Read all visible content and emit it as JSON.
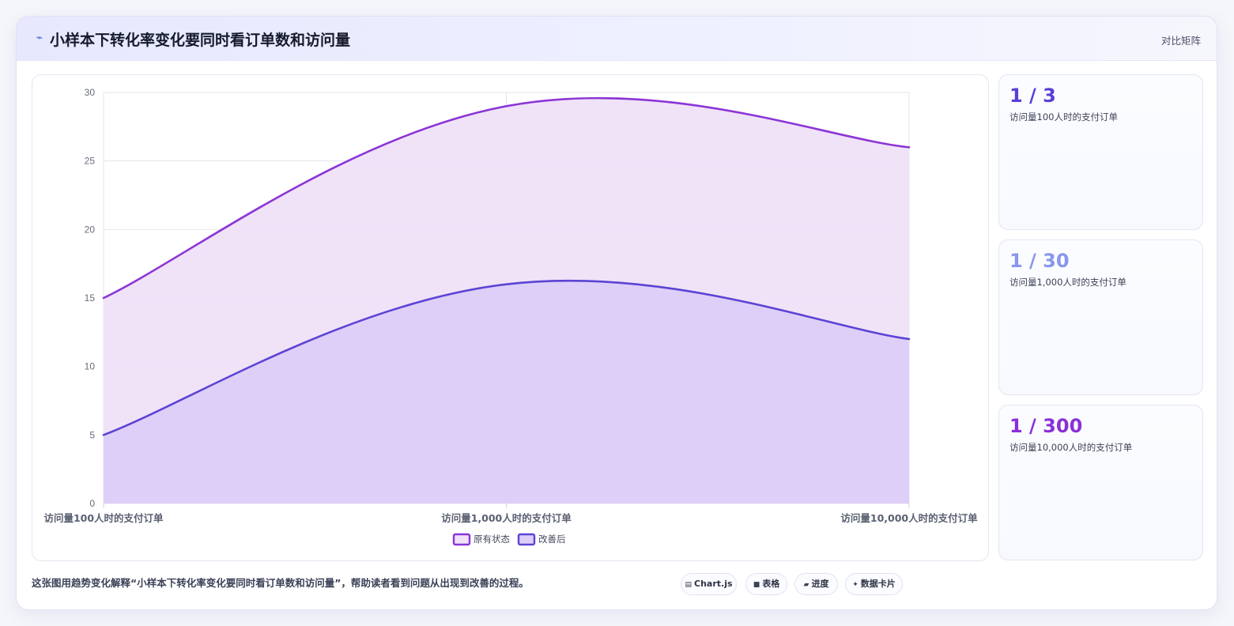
{
  "header": {
    "title": "小样本下转化率变化要同时看订单数和访问量",
    "right_label": "对比矩阵",
    "icon": "trend-line-icon",
    "icon_glyph": "⌁"
  },
  "chart_data": {
    "type": "area",
    "categories": [
      "访问量100人时的支付订单",
      "访问量1,000人时的支付订单",
      "访问量10,000人时的支付订单"
    ],
    "series": [
      {
        "name": "原有状态",
        "values": [
          15,
          29,
          26
        ],
        "color": "#8b35d6",
        "fill": "#efe2f8"
      },
      {
        "name": "改善后",
        "values": [
          5,
          16,
          12
        ],
        "color": "#5b44d4",
        "fill": "#dccef8"
      }
    ],
    "ylim": [
      0,
      30
    ],
    "yticks": [
      0,
      5,
      10,
      15,
      20,
      25,
      30
    ],
    "grid": true,
    "legend_position": "bottom"
  },
  "stats": [
    {
      "value": "1 / 3",
      "label": "访问量100人时的支付订单",
      "color": "#5a3fd6"
    },
    {
      "value": "1 / 30",
      "label": "访问量1,000人时的支付订单",
      "color": "#8a96ec"
    },
    {
      "value": "1 / 300",
      "label": "访问量10,000人时的支付订单",
      "color": "#8b2fd8"
    }
  ],
  "footer": {
    "text": "这张图用趋势变化解释“小样本下转化率变化要同时看订单数和访问量”，帮助读者看到问题从出现到改善的过程。",
    "chips": [
      {
        "icon_glyph": "▤",
        "icon": "chart-icon",
        "label": "Chart.js"
      },
      {
        "icon_glyph": "■",
        "icon": "table-icon",
        "label": "表格"
      },
      {
        "icon_glyph": "▰",
        "icon": "progress-icon",
        "label": "进度"
      },
      {
        "icon_glyph": "✦",
        "icon": "sparkle-icon",
        "label": "数据卡片"
      }
    ]
  }
}
